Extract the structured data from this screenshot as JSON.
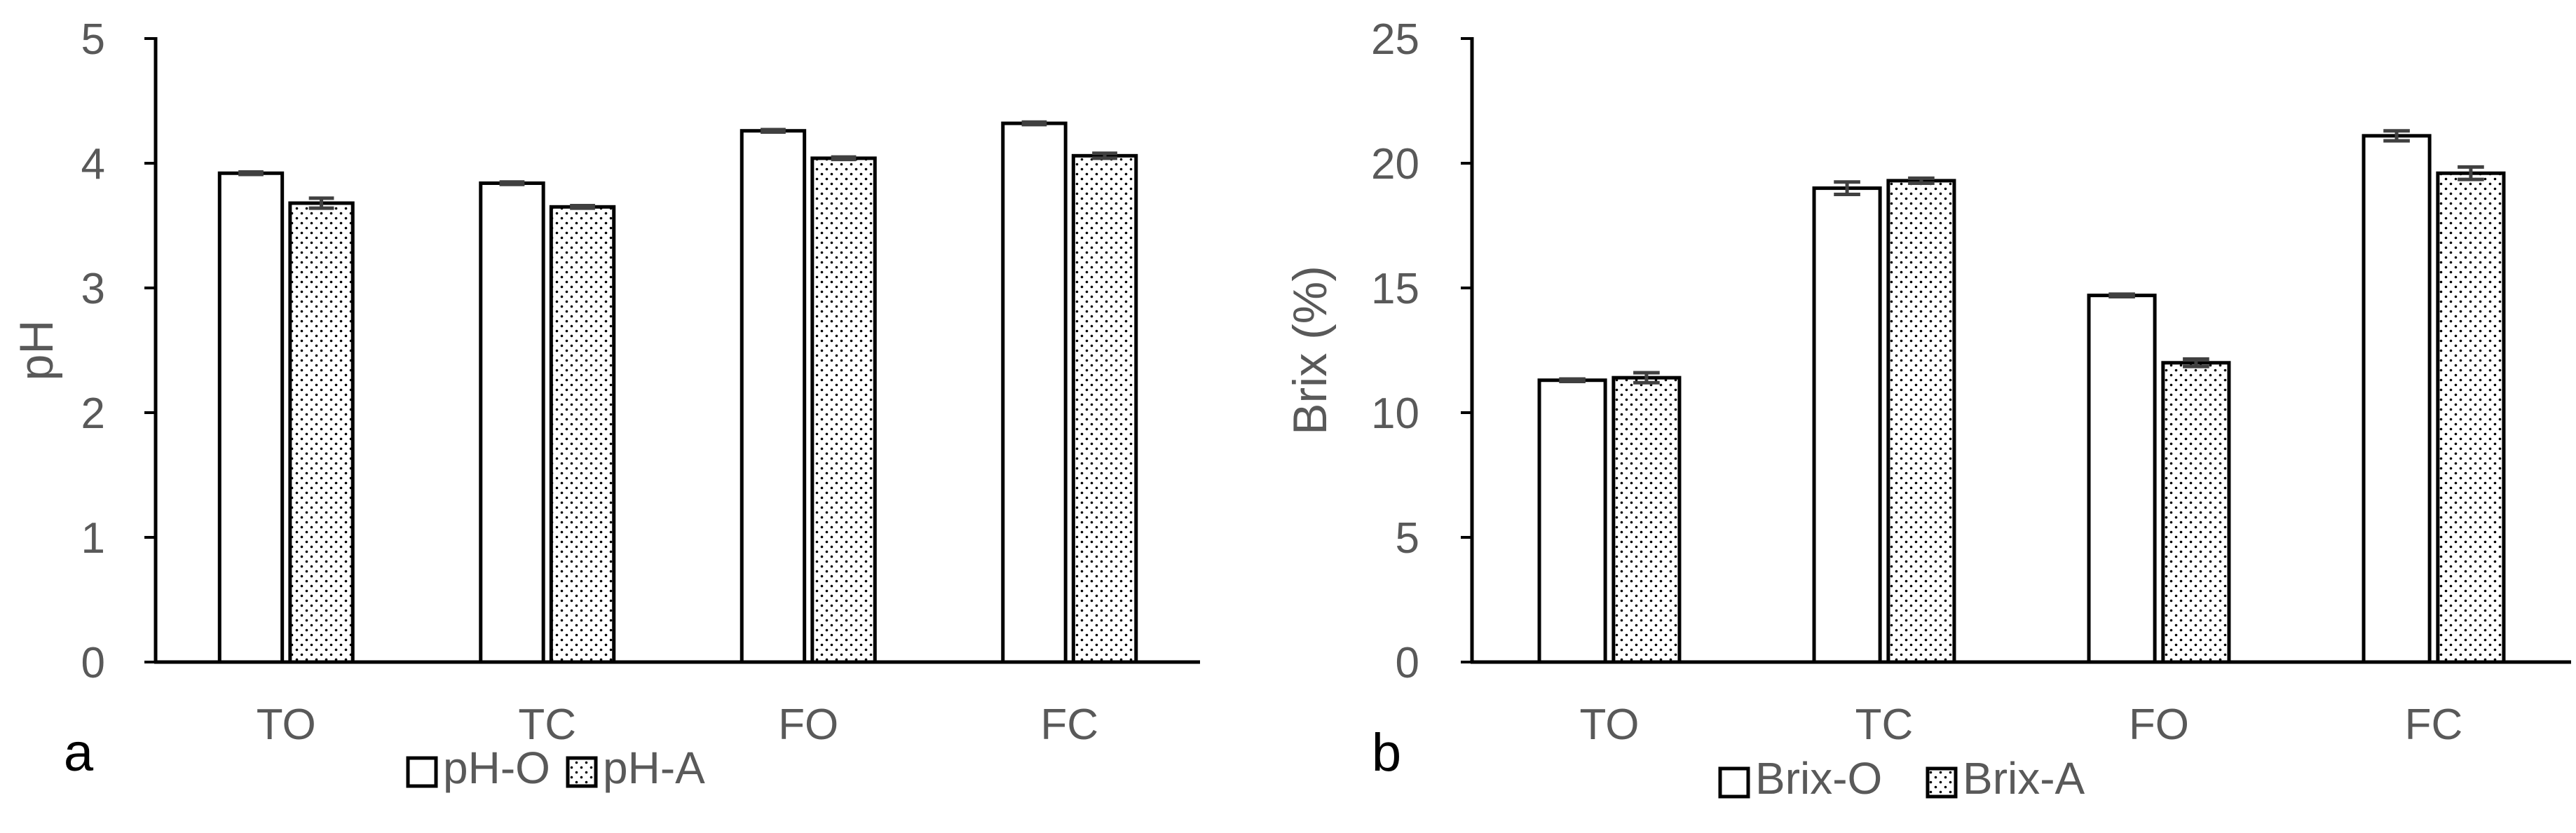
{
  "colors": {
    "axis": "#000000",
    "text": "#595959",
    "bar_fill_open": "#ffffff",
    "dot": "#000000",
    "error_bar": "#404040"
  },
  "chart_data": [
    {
      "type": "bar",
      "panel_label": "a",
      "title": "",
      "xlabel": "",
      "ylabel": "pH",
      "ylim": [
        0,
        5
      ],
      "yticks": [
        0,
        1,
        2,
        3,
        4,
        5
      ],
      "categories": [
        "TO",
        "TC",
        "FO",
        "FC"
      ],
      "series": [
        {
          "name": "pH-O",
          "pattern": "open",
          "values": [
            3.92,
            3.84,
            4.26,
            4.32
          ],
          "errors": [
            0.01,
            0.01,
            0.01,
            0.01
          ]
        },
        {
          "name": "pH-A",
          "pattern": "dotted",
          "values": [
            3.68,
            3.65,
            4.04,
            4.06
          ],
          "errors": [
            0.04,
            0.01,
            0.01,
            0.02
          ]
        }
      ],
      "grid": false,
      "legend": "bottom-center"
    },
    {
      "type": "bar",
      "panel_label": "b",
      "title": "",
      "xlabel": "",
      "ylabel": "Brix (%)",
      "ylim": [
        0,
        25
      ],
      "yticks": [
        0,
        5,
        10,
        15,
        20,
        25
      ],
      "categories": [
        "TO",
        "TC",
        "FO",
        "FC"
      ],
      "series": [
        {
          "name": "Brix-O",
          "pattern": "open",
          "values": [
            11.3,
            19.0,
            14.7,
            21.1
          ],
          "errors": [
            0.05,
            0.25,
            0.05,
            0.2
          ]
        },
        {
          "name": "Brix-A",
          "pattern": "dotted",
          "values": [
            11.4,
            19.3,
            12.0,
            19.6
          ],
          "errors": [
            0.2,
            0.1,
            0.15,
            0.25
          ]
        }
      ],
      "grid": false,
      "legend": "bottom-center"
    }
  ]
}
